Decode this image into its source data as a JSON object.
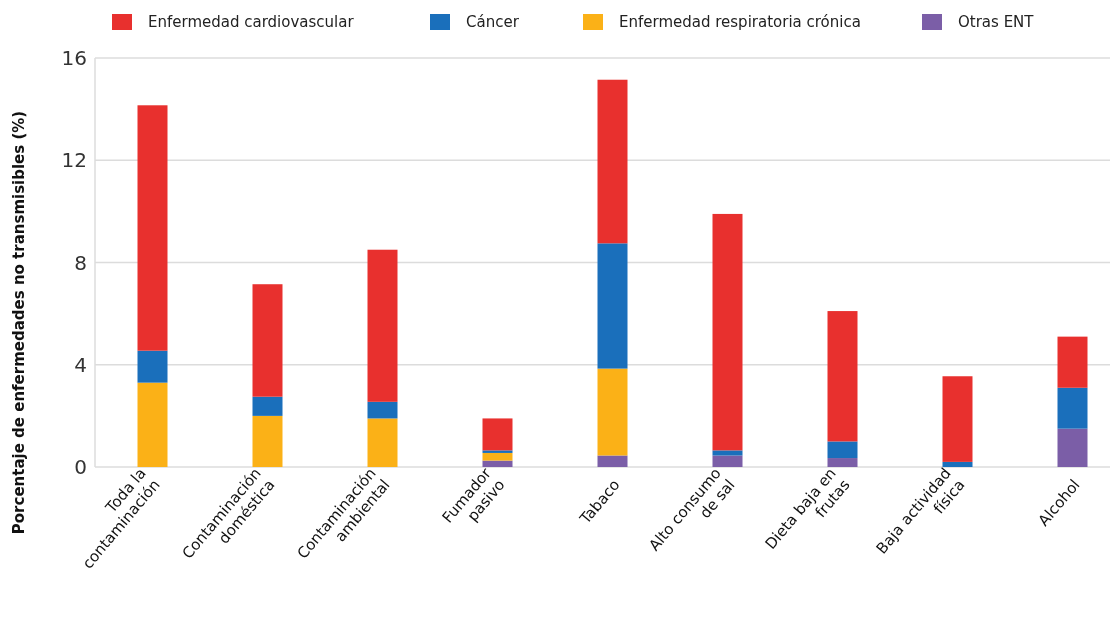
{
  "chart_data": {
    "type": "bar",
    "stacked": true,
    "ylabel": "Porcentaje de enfermedades no transmisibles (%)",
    "categories": [
      "Toda la\ncontaminación",
      "Contaminación\ndoméstica",
      "Contaminación\nambiental",
      "Fumador\npasivo",
      "Tabaco",
      "Alto consumo\nde sal",
      "Dieta baja en\nfrutas",
      "Baja actividad\nfísica",
      "Alcohol"
    ],
    "series": [
      {
        "name": "Otras ENT",
        "color": "#7b5ea7",
        "values": [
          0,
          0,
          0,
          0.25,
          0.45,
          0.45,
          0.35,
          0,
          1.5
        ]
      },
      {
        "name": "Enfermedad respiratoria crónica",
        "color": "#fbb117",
        "values": [
          3.3,
          2.0,
          1.9,
          0.3,
          3.4,
          0,
          0,
          0,
          0
        ]
      },
      {
        "name": "Cáncer",
        "color": "#1a6fbb",
        "values": [
          1.25,
          0.75,
          0.65,
          0.1,
          4.9,
          0.2,
          0.65,
          0.2,
          1.6
        ]
      },
      {
        "name": "Enfermedad cardiovascular",
        "color": "#e8302e",
        "values": [
          9.6,
          4.4,
          5.95,
          1.25,
          6.4,
          9.25,
          5.1,
          3.35,
          2.0
        ]
      }
    ],
    "ylim": [
      0,
      16
    ],
    "yticks": [
      0,
      4,
      8,
      12,
      16
    ],
    "grid": "y",
    "legend": "top"
  }
}
